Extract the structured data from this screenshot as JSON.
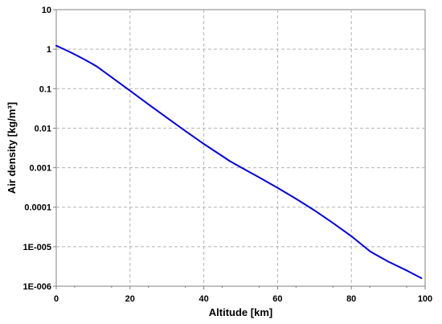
{
  "chart_data": {
    "type": "line",
    "title": "",
    "xlabel": "Altitude [km]",
    "ylabel": "Air density [kg/m³]",
    "xlim": [
      0,
      100
    ],
    "ylim": [
      1e-06,
      10
    ],
    "yscale": "log",
    "grid": true,
    "x_ticks": [
      0,
      20,
      40,
      60,
      80,
      100
    ],
    "x_tick_labels": [
      "0",
      "20",
      "40",
      "60",
      "80",
      "100"
    ],
    "y_ticks": [
      1e-06,
      1e-05,
      0.0001,
      0.001,
      0.01,
      0.1,
      1,
      10
    ],
    "y_tick_labels": [
      "1E-006",
      "1E-005",
      "0.0001",
      "0.001",
      "0.01",
      "0.1",
      "1",
      "10"
    ],
    "series": [
      {
        "color": "#0000e6",
        "x": [
          0,
          2,
          4,
          6,
          8,
          10,
          11,
          15,
          20,
          25,
          30,
          35,
          40,
          45,
          47,
          50,
          55,
          60,
          65,
          70,
          75,
          80,
          85,
          86,
          90,
          95,
          99
        ],
        "y": [
          1.225,
          1.007,
          0.8194,
          0.6601,
          0.5258,
          0.4135,
          0.3639,
          0.1948,
          0.08891,
          0.04008,
          0.01841,
          0.008463,
          0.003996,
          0.001966,
          0.001476,
          0.001027,
          0.0005681,
          0.0003097,
          0.0001632,
          8.283e-05,
          3.992e-05,
          1.846e-05,
          7.726e-06,
          6.8e-06,
          4.2e-06,
          2.5e-06,
          1.6e-06
        ]
      }
    ]
  }
}
